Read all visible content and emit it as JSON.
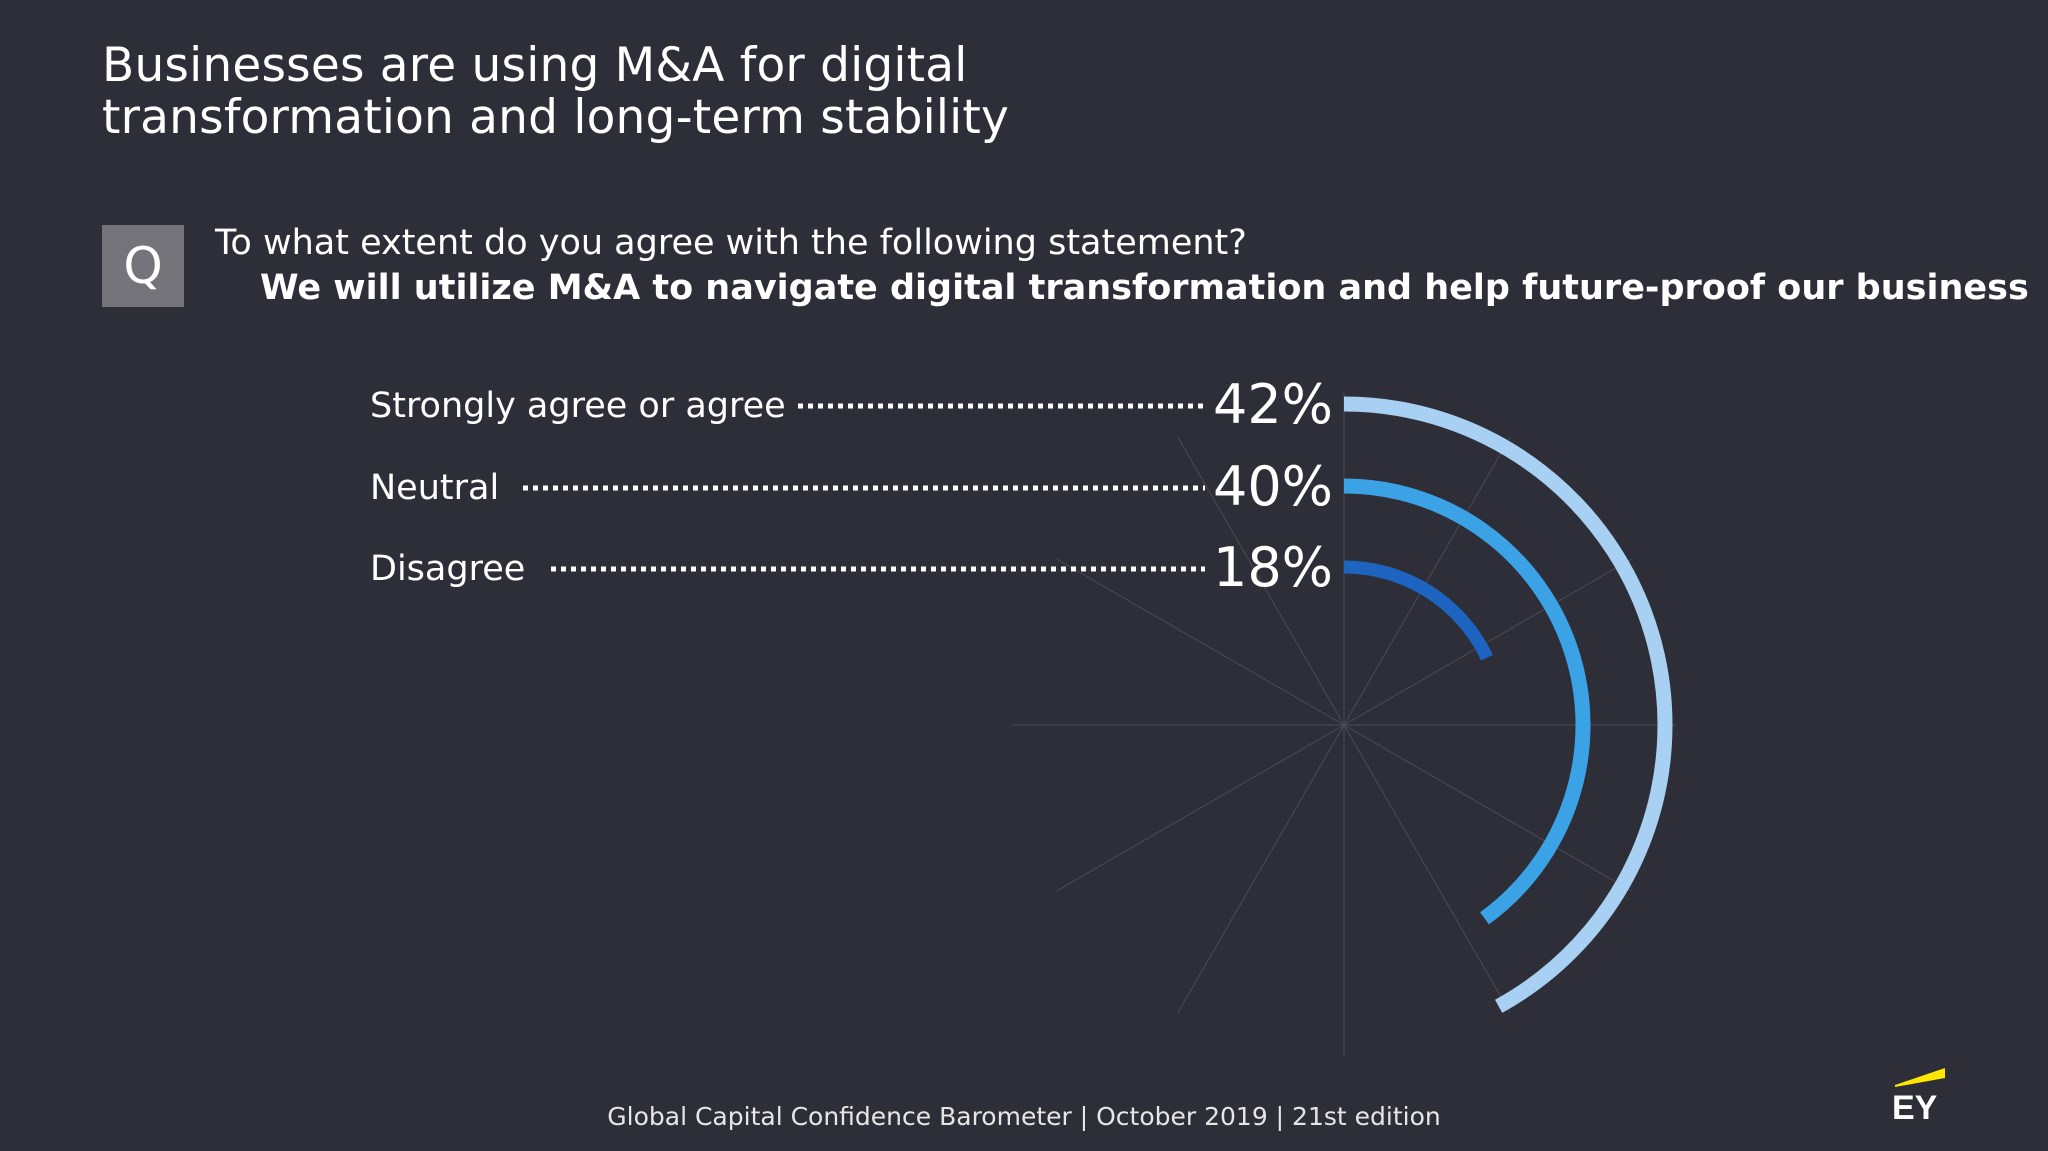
{
  "slide": {
    "title_line1": "Businesses are using M&A for digital",
    "title_line2": "transformation and long-term stability",
    "q_badge": "Q",
    "question": "To what extent do you agree with the following statement?",
    "statement": "We will utilize M&A to navigate digital transformation and help future-proof our business",
    "footer": "Global Capital Confidence Barometer | October 2019 | 21st edition",
    "logo_text": "EY"
  },
  "colors": {
    "background": "#2e2e38",
    "text": "#ffffff",
    "badge": "#75747b",
    "grid_line": "#4b4b56",
    "logo_yellow": "#ffe600"
  },
  "chart_data": {
    "type": "radial-bar",
    "title": "",
    "categories": [
      "Strongly agree or agree",
      "Neutral",
      "Disagree"
    ],
    "values": [
      42,
      40,
      18
    ],
    "value_labels": [
      "42%",
      "40%",
      "18%"
    ],
    "unit": "%",
    "series": [
      {
        "name": "Strongly agree or agree",
        "value": 42,
        "color": "#a8d0f2"
      },
      {
        "name": "Neutral",
        "value": 40,
        "color": "#3ba2e6"
      },
      {
        "name": "Disagree",
        "value": 18,
        "color": "#1c64c0"
      }
    ],
    "grid": true
  }
}
